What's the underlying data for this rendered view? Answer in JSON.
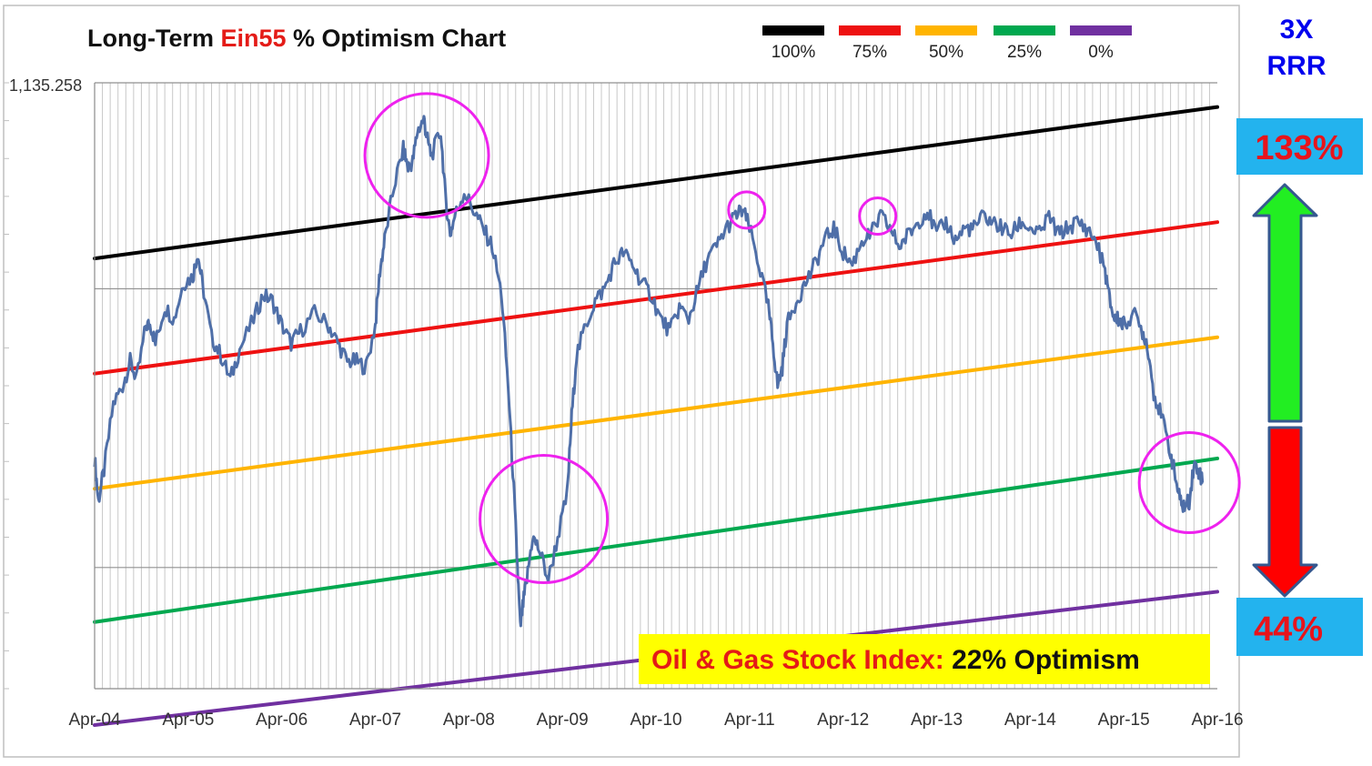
{
  "title": {
    "prefix": "Long-Term ",
    "highlight": "Ein55",
    "suffix": " % Optimism Chart"
  },
  "legend": [
    {
      "label": "100%",
      "color": "#000000"
    },
    {
      "label": "75%",
      "color": "#ee1111"
    },
    {
      "label": "50%",
      "color": "#ffb400"
    },
    {
      "label": "25%",
      "color": "#00a84f"
    },
    {
      "label": "0%",
      "color": "#7030a0"
    }
  ],
  "rrr_label": {
    "line1": "3X",
    "line2": "RRR"
  },
  "upside": {
    "label": "133%",
    "color": "#22ee22"
  },
  "downside": {
    "label": "44%",
    "color": "#ff0000"
  },
  "note": {
    "prefix": "Oil & Gas Stock Index:",
    "value": " 22% Optimism"
  },
  "colors": {
    "index_line": "#4f6fa8",
    "circle": "#ee22ee",
    "callout_box": "#23b3ee",
    "note_bg": "#ffff00",
    "prefix_red": "#e41b17"
  },
  "chart_data": {
    "type": "line",
    "title": "Long-Term Ein55 % Optimism Chart",
    "y_top_label": "1,135.258",
    "x_tick_labels": [
      "Apr-04",
      "Apr-05",
      "Apr-06",
      "Apr-07",
      "Apr-08",
      "Apr-09",
      "Apr-10",
      "Apr-11",
      "Apr-12",
      "Apr-13",
      "Apr-14",
      "Apr-15",
      "Apr-16"
    ],
    "grid": true,
    "legend_position": "top",
    "bands": [
      {
        "name": "100%",
        "color": "#000000",
        "start_fraction": 0.71,
        "end_fraction": 0.96
      },
      {
        "name": "75%",
        "color": "#ee1111",
        "start_fraction": 0.52,
        "end_fraction": 0.77
      },
      {
        "name": "50%",
        "color": "#ffb400",
        "start_fraction": 0.33,
        "end_fraction": 0.58
      },
      {
        "name": "25%",
        "color": "#00a84f",
        "start_fraction": 0.11,
        "end_fraction": 0.38
      },
      {
        "name": "0%",
        "color": "#7030a0",
        "start_fraction": -0.06,
        "end_fraction": 0.16
      }
    ],
    "series": [
      {
        "color": "#4f6fa8",
        "points": [
          [
            0.0,
            0.38
          ],
          [
            0.04,
            0.31
          ],
          [
            0.1,
            0.36
          ],
          [
            0.2,
            0.47
          ],
          [
            0.3,
            0.5
          ],
          [
            0.38,
            0.54
          ],
          [
            0.45,
            0.51
          ],
          [
            0.55,
            0.6
          ],
          [
            0.6,
            0.6
          ],
          [
            0.65,
            0.57
          ],
          [
            0.75,
            0.63
          ],
          [
            0.85,
            0.61
          ],
          [
            0.95,
            0.67
          ],
          [
            1.05,
            0.68
          ],
          [
            1.1,
            0.72
          ],
          [
            1.15,
            0.67
          ],
          [
            1.25,
            0.58
          ],
          [
            1.35,
            0.55
          ],
          [
            1.45,
            0.51
          ],
          [
            1.55,
            0.56
          ],
          [
            1.7,
            0.61
          ],
          [
            1.8,
            0.65
          ],
          [
            1.9,
            0.64
          ],
          [
            2.0,
            0.6
          ],
          [
            2.1,
            0.57
          ],
          [
            2.2,
            0.59
          ],
          [
            2.35,
            0.62
          ],
          [
            2.5,
            0.6
          ],
          [
            2.6,
            0.57
          ],
          [
            2.7,
            0.54
          ],
          [
            2.8,
            0.54
          ],
          [
            2.9,
            0.53
          ],
          [
            3.0,
            0.6
          ],
          [
            3.05,
            0.69
          ],
          [
            3.1,
            0.74
          ],
          [
            3.2,
            0.83
          ],
          [
            3.3,
            0.89
          ],
          [
            3.35,
            0.86
          ],
          [
            3.4,
            0.87
          ],
          [
            3.45,
            0.92
          ],
          [
            3.52,
            0.94
          ],
          [
            3.55,
            0.91
          ],
          [
            3.6,
            0.88
          ],
          [
            3.7,
            0.92
          ],
          [
            3.75,
            0.81
          ],
          [
            3.8,
            0.75
          ],
          [
            3.85,
            0.78
          ],
          [
            3.95,
            0.82
          ],
          [
            4.05,
            0.79
          ],
          [
            4.15,
            0.76
          ],
          [
            4.25,
            0.73
          ],
          [
            4.35,
            0.65
          ],
          [
            4.42,
            0.5
          ],
          [
            4.48,
            0.33
          ],
          [
            4.52,
            0.2
          ],
          [
            4.55,
            0.1
          ],
          [
            4.58,
            0.14
          ],
          [
            4.62,
            0.18
          ],
          [
            4.68,
            0.25
          ],
          [
            4.75,
            0.23
          ],
          [
            4.85,
            0.18
          ],
          [
            4.95,
            0.25
          ],
          [
            5.05,
            0.32
          ],
          [
            5.1,
            0.45
          ],
          [
            5.15,
            0.55
          ],
          [
            5.25,
            0.6
          ],
          [
            5.35,
            0.64
          ],
          [
            5.45,
            0.66
          ],
          [
            5.55,
            0.7
          ],
          [
            5.65,
            0.72
          ],
          [
            5.75,
            0.7
          ],
          [
            5.85,
            0.67
          ],
          [
            5.95,
            0.65
          ],
          [
            6.05,
            0.61
          ],
          [
            6.15,
            0.59
          ],
          [
            6.25,
            0.63
          ],
          [
            6.35,
            0.61
          ],
          [
            6.45,
            0.66
          ],
          [
            6.55,
            0.71
          ],
          [
            6.65,
            0.73
          ],
          [
            6.75,
            0.76
          ],
          [
            6.85,
            0.78
          ],
          [
            6.93,
            0.79
          ],
          [
            7.0,
            0.76
          ],
          [
            7.1,
            0.7
          ],
          [
            7.2,
            0.63
          ],
          [
            7.25,
            0.57
          ],
          [
            7.3,
            0.5
          ],
          [
            7.35,
            0.53
          ],
          [
            7.4,
            0.6
          ],
          [
            7.5,
            0.64
          ],
          [
            7.6,
            0.67
          ],
          [
            7.7,
            0.7
          ],
          [
            7.8,
            0.74
          ],
          [
            7.9,
            0.76
          ],
          [
            8.0,
            0.72
          ],
          [
            8.1,
            0.7
          ],
          [
            8.2,
            0.74
          ],
          [
            8.3,
            0.75
          ],
          [
            8.4,
            0.78
          ],
          [
            8.5,
            0.76
          ],
          [
            8.6,
            0.73
          ],
          [
            8.7,
            0.75
          ],
          [
            8.8,
            0.77
          ],
          [
            8.9,
            0.79
          ],
          [
            9.0,
            0.75
          ],
          [
            9.1,
            0.77
          ],
          [
            9.2,
            0.74
          ],
          [
            9.3,
            0.76
          ],
          [
            9.4,
            0.76
          ],
          [
            9.5,
            0.78
          ],
          [
            9.6,
            0.77
          ],
          [
            9.7,
            0.76
          ],
          [
            9.8,
            0.75
          ],
          [
            9.9,
            0.77
          ],
          [
            10.0,
            0.76
          ],
          [
            10.1,
            0.75
          ],
          [
            10.2,
            0.78
          ],
          [
            10.3,
            0.75
          ],
          [
            10.4,
            0.76
          ],
          [
            10.5,
            0.77
          ],
          [
            10.6,
            0.76
          ],
          [
            10.7,
            0.74
          ],
          [
            10.8,
            0.69
          ],
          [
            10.85,
            0.64
          ],
          [
            10.9,
            0.61
          ],
          [
            10.95,
            0.61
          ],
          [
            11.0,
            0.6
          ],
          [
            11.1,
            0.62
          ],
          [
            11.2,
            0.59
          ],
          [
            11.25,
            0.57
          ],
          [
            11.32,
            0.49
          ],
          [
            11.4,
            0.45
          ],
          [
            11.5,
            0.39
          ],
          [
            11.55,
            0.35
          ],
          [
            11.6,
            0.31
          ],
          [
            11.65,
            0.3
          ],
          [
            11.7,
            0.31
          ],
          [
            11.75,
            0.37
          ],
          [
            11.8,
            0.36
          ],
          [
            11.85,
            0.34
          ]
        ]
      }
    ],
    "highlights": [
      {
        "cx": 3.55,
        "cy": 0.88
      },
      {
        "cx": 4.8,
        "cy": 0.28
      },
      {
        "cx": 6.97,
        "cy": 0.79
      },
      {
        "cx": 8.37,
        "cy": 0.78
      },
      {
        "cx": 11.7,
        "cy": 0.34
      }
    ]
  }
}
